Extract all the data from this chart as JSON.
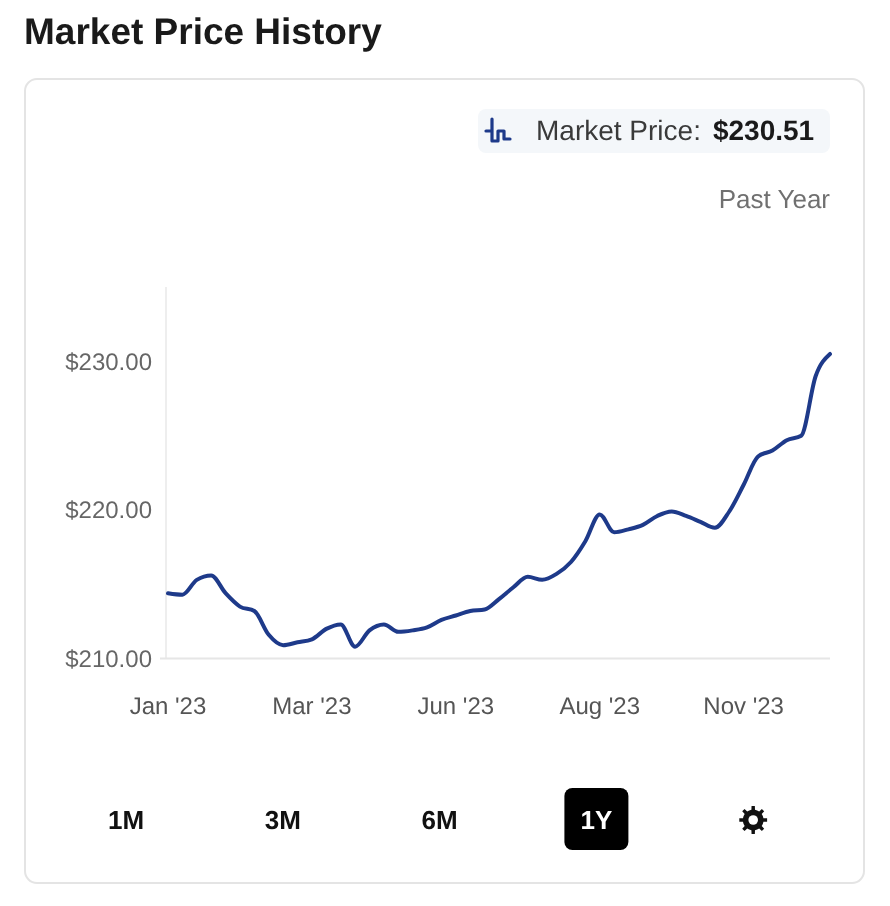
{
  "chart_data": {
    "type": "line",
    "title": "Market Price History",
    "subtitle": "Past Year",
    "categories": [
      "Jan '23",
      null,
      null,
      null,
      null,
      null,
      null,
      null,
      null,
      null,
      "Mar '23",
      null,
      null,
      null,
      null,
      null,
      null,
      null,
      null,
      null,
      "Jun '23",
      null,
      null,
      null,
      null,
      null,
      null,
      null,
      null,
      null,
      "Aug '23",
      null,
      null,
      null,
      null,
      null,
      null,
      null,
      null,
      null,
      "Nov '23",
      null,
      null,
      null,
      null,
      null,
      null
    ],
    "series": [
      {
        "name": "Market Price:",
        "color": "#1e3a8a",
        "values": [
          214.4,
          214.3,
          215.3,
          215.6,
          214.4,
          213.5,
          213.2,
          211.6,
          210.9,
          211.1,
          211.3,
          212.0,
          212.3,
          210.8,
          211.9,
          212.3,
          211.8,
          211.9,
          212.1,
          212.6,
          212.9,
          213.2,
          213.3,
          214.0,
          214.8,
          215.5,
          215.3,
          215.7,
          216.5,
          217.9,
          219.7,
          218.5,
          218.7,
          219.0,
          219.6,
          219.9,
          219.6,
          219.2,
          218.8,
          219.9,
          221.7,
          223.6,
          224.0,
          224.7,
          225.0,
          229.0,
          230.5
        ]
      }
    ],
    "ylim": [
      210,
      235
    ],
    "yticks": [
      {
        "value": 210,
        "label": "$210.00"
      },
      {
        "value": 220,
        "label": "$220.00"
      },
      {
        "value": 230,
        "label": "$230.00"
      }
    ],
    "legend": "top right",
    "annotations": [
      "$230.51",
      "1M",
      "3M",
      "6M",
      "1Y"
    ]
  }
}
